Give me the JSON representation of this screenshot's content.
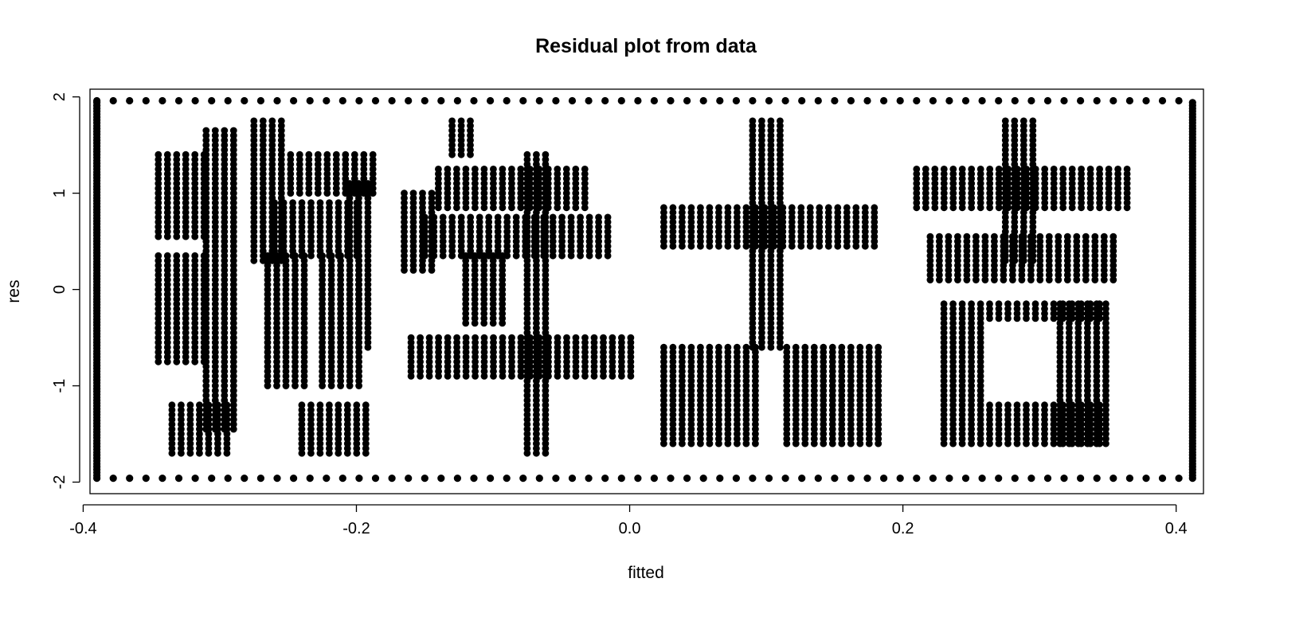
{
  "chart_data": {
    "type": "scatter",
    "title": "Residual plot from data",
    "xlabel": "fitted",
    "ylabel": "res",
    "xlim": [
      -0.395,
      0.42
    ],
    "ylim": [
      -2.12,
      2.08
    ],
    "x_ticks": [
      -0.4,
      -0.2,
      0.0,
      0.2,
      0.4
    ],
    "x_tick_labels": [
      "-0.4",
      "-0.2",
      "0.0",
      "0.2",
      "0.4"
    ],
    "y_ticks": [
      -2,
      -1,
      0,
      1,
      2
    ],
    "y_tick_labels": [
      "-2",
      "-1",
      "0",
      "1",
      "2"
    ],
    "grid": false,
    "marker": "filled-circle",
    "point_color": "#000000",
    "description_of_pattern": "",
    "border": {
      "x_range": [
        -0.39,
        0.412
      ],
      "y_range": [
        -1.96,
        1.96
      ],
      "step": 0.012
    },
    "glyph_regions": {
      "rows_y_top": 1.78,
      "rows_y_bottom": -1.78,
      "row_step": 0.05,
      "col_step": 0.0067,
      "glyphs": [
        {
          "char": "狗",
          "rects": [
            [
              -0.345,
              -0.305,
              0.55,
              1.4
            ],
            [
              -0.345,
              -0.305,
              -0.75,
              0.35
            ],
            [
              -0.335,
              -0.29,
              -1.7,
              -1.2
            ],
            [
              -0.31,
              -0.285,
              -1.45,
              1.65
            ],
            [
              -0.275,
              -0.25,
              0.3,
              1.75
            ],
            [
              -0.275,
              -0.185,
              1.0,
              1.4
            ],
            [
              -0.26,
              -0.195,
              0.35,
              0.9
            ],
            [
              -0.265,
              -0.235,
              -1.0,
              0.35
            ],
            [
              -0.225,
              -0.195,
              -1.0,
              0.35
            ],
            [
              -0.205,
              -0.185,
              -0.6,
              1.1
            ],
            [
              -0.24,
              -0.19,
              -1.7,
              -1.2
            ]
          ]
        },
        {
          "char": "年",
          "rects": [
            [
              -0.165,
              -0.14,
              0.2,
              1.0
            ],
            [
              -0.14,
              -0.03,
              0.85,
              1.25
            ],
            [
              -0.15,
              -0.01,
              0.35,
              0.75
            ],
            [
              -0.12,
              -0.09,
              -0.35,
              0.35
            ],
            [
              -0.16,
              0.005,
              -0.9,
              -0.5
            ],
            [
              -0.075,
              -0.055,
              -1.7,
              1.4
            ],
            [
              -0.13,
              -0.11,
              1.4,
              1.75
            ]
          ]
        },
        {
          "char": "大",
          "rects": [
            [
              0.025,
              0.185,
              0.45,
              0.85
            ],
            [
              0.09,
              0.115,
              -0.6,
              1.75
            ],
            [
              0.025,
              0.095,
              -1.6,
              -0.6
            ],
            [
              0.115,
              0.185,
              -1.6,
              -0.6
            ]
          ]
        },
        {
          "char": "吉",
          "rects": [
            [
              0.21,
              0.365,
              0.85,
              1.25
            ],
            [
              0.275,
              0.3,
              0.3,
              1.75
            ],
            [
              0.22,
              0.36,
              0.1,
              0.55
            ],
            [
              0.23,
              0.35,
              -0.3,
              -0.15
            ],
            [
              0.23,
              0.26,
              -1.6,
              -0.15
            ],
            [
              0.315,
              0.35,
              -1.6,
              -0.15
            ],
            [
              0.23,
              0.35,
              -1.6,
              -1.2
            ]
          ]
        }
      ]
    }
  }
}
